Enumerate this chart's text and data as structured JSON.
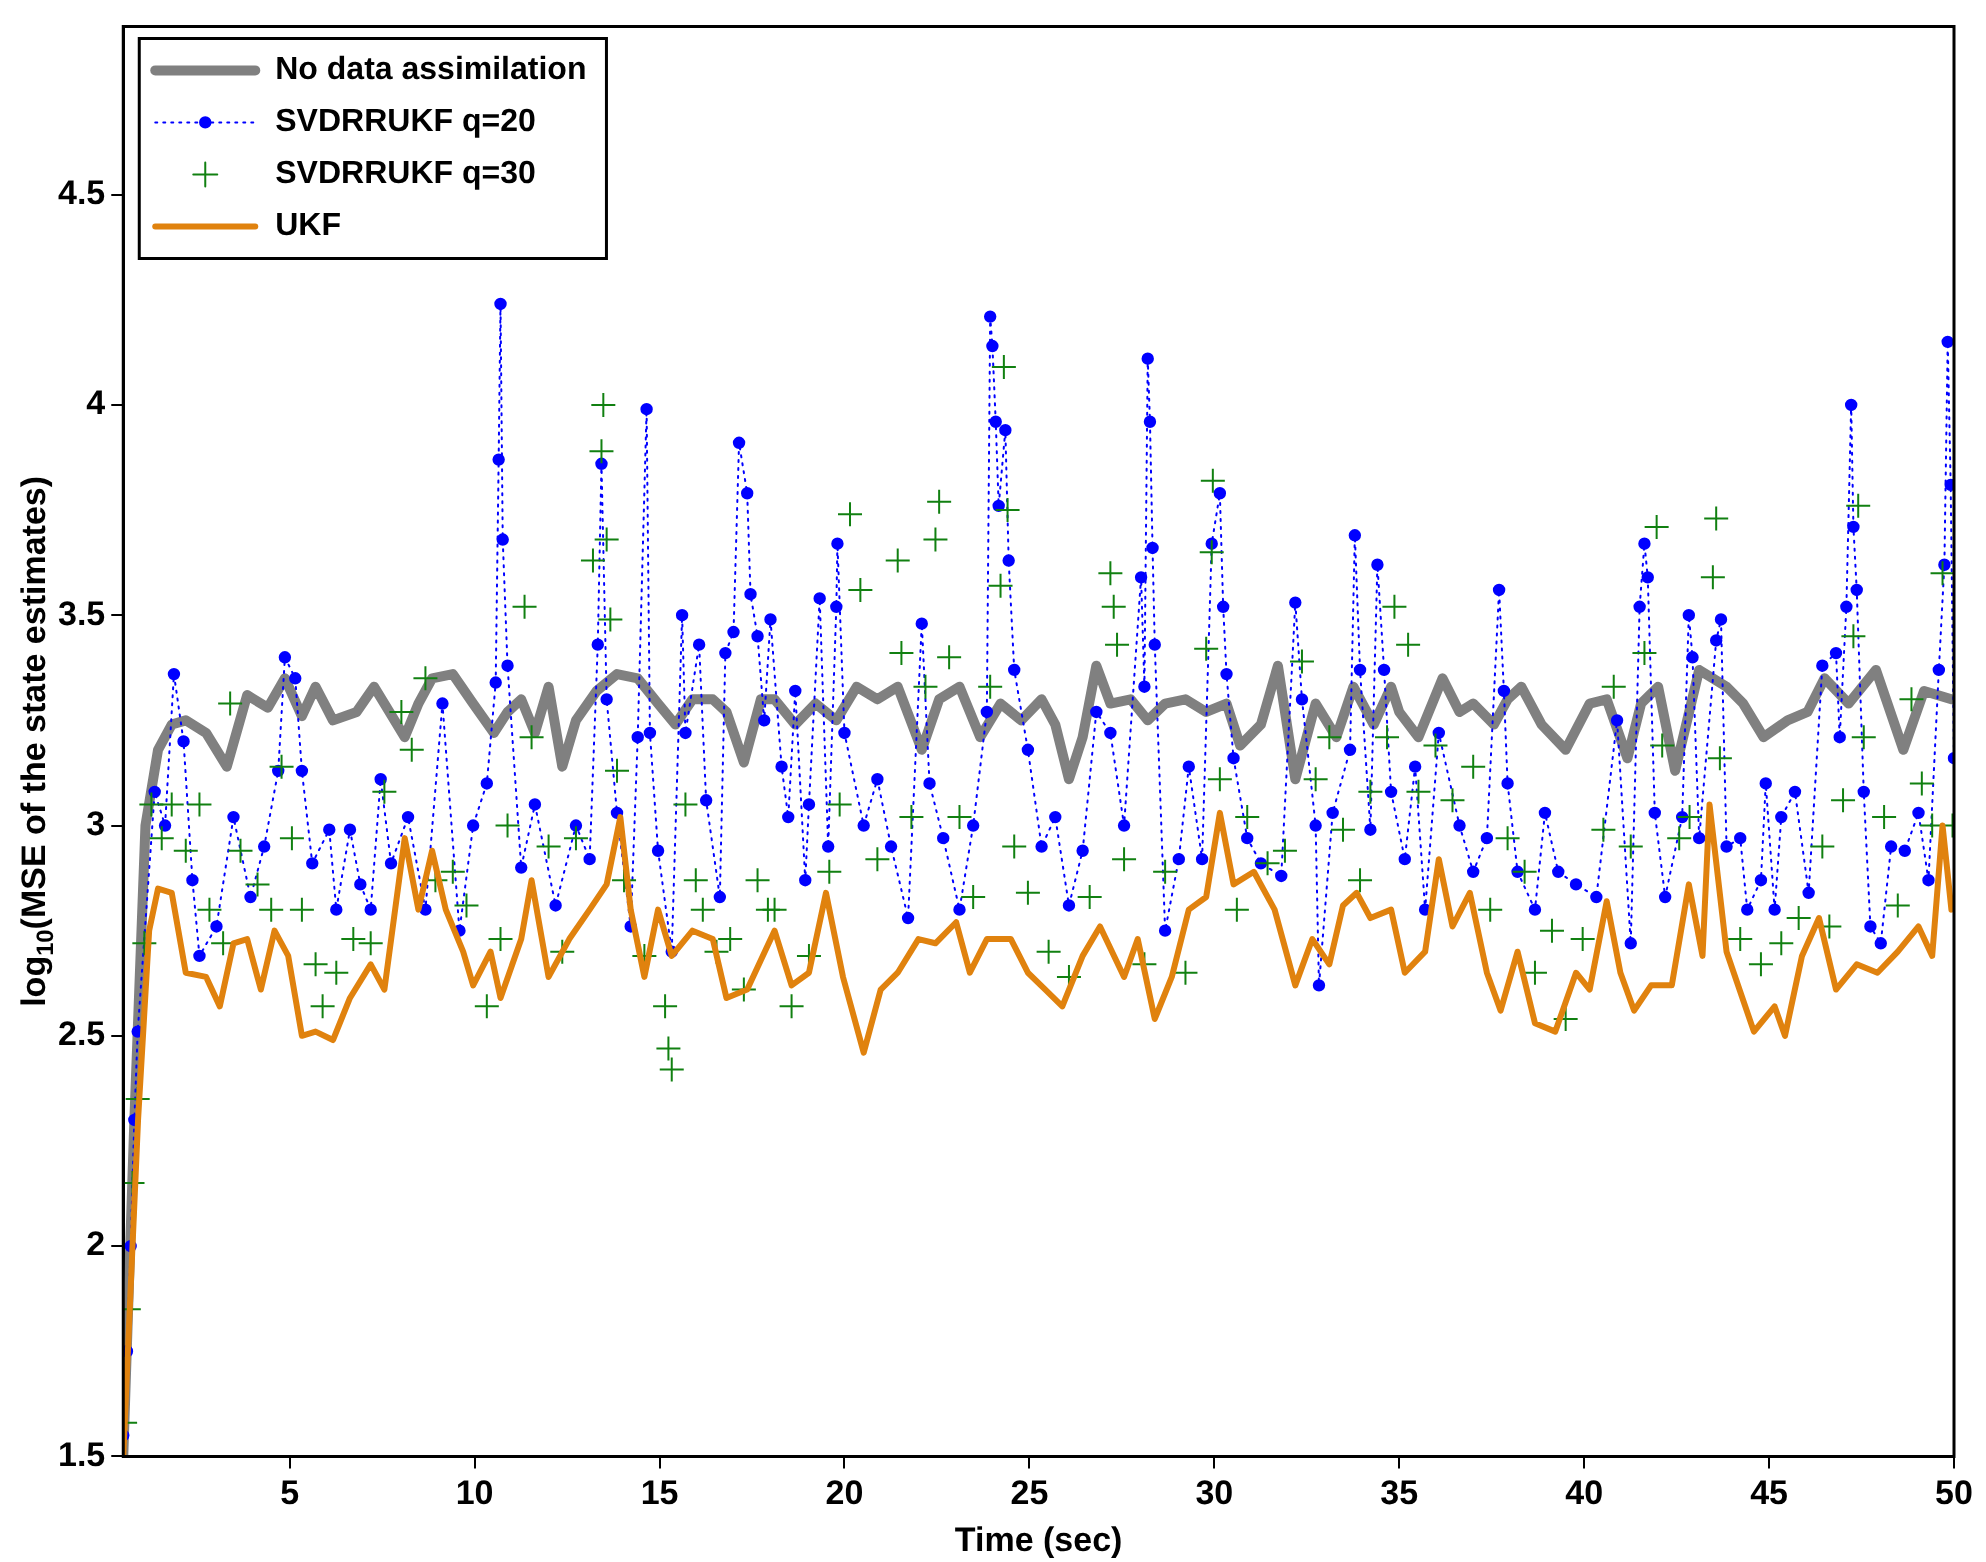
{
  "chart_data": {
    "type": "line",
    "xlabel": "Time (sec)",
    "ylabel": "log$_{10}$(MSE of the state estimates)",
    "xlim": [
      0.5,
      50
    ],
    "xticks": [
      5,
      10,
      15,
      20,
      25,
      30,
      35,
      40,
      45,
      50
    ],
    "ylim": [
      1.5,
      4.9
    ],
    "yticks": [
      1.5,
      2,
      2.5,
      3,
      3.5,
      4,
      4.5
    ],
    "legend": "top left",
    "series": [
      {
        "name": "No data assimilation",
        "color": "#808080",
        "marker": "none",
        "line_style": "solid",
        "x": [
          0.5,
          0.8,
          1.1,
          1.44,
          1.81,
          2.19,
          2.74,
          3.3,
          3.85,
          4.41,
          4.87,
          5.33,
          5.7,
          6.17,
          6.81,
          7.28,
          7.56,
          8.11,
          8.48,
          8.85,
          9.41,
          9.96,
          10.52,
          10.89,
          11.26,
          11.63,
          12.0,
          12.37,
          12.74,
          13.3,
          13.85,
          14.41,
          14.96,
          15.43,
          15.89,
          16.44,
          16.81,
          17.28,
          17.74,
          18.11,
          18.67,
          19.22,
          19.78,
          20.33,
          20.89,
          21.44,
          22.09,
          22.56,
          23.11,
          23.67,
          24.22,
          24.78,
          25.33,
          25.7,
          26.07,
          26.44,
          26.81,
          27.19,
          27.74,
          28.2,
          28.67,
          29.22,
          29.78,
          30.33,
          30.7,
          31.26,
          31.72,
          32.19,
          32.74,
          33.3,
          33.76,
          34.31,
          34.78,
          35.0,
          35.52,
          36.17,
          36.63,
          37.0,
          37.56,
          37.93,
          38.3,
          38.85,
          39.5,
          40.15,
          40.61,
          41.17,
          41.54,
          42.0,
          42.46,
          43.11,
          43.85,
          44.3,
          44.85,
          45.5,
          46.04,
          46.5,
          47.15,
          47.89,
          48.63,
          49.19,
          49.93
        ],
        "values": [
          1.5,
          2.3,
          3.0,
          3.18,
          3.24,
          3.25,
          3.22,
          3.14,
          3.31,
          3.28,
          3.35,
          3.26,
          3.33,
          3.25,
          3.27,
          3.33,
          3.29,
          3.21,
          3.29,
          3.35,
          3.36,
          3.29,
          3.22,
          3.27,
          3.3,
          3.22,
          3.33,
          3.14,
          3.25,
          3.32,
          3.36,
          3.35,
          3.29,
          3.24,
          3.3,
          3.3,
          3.27,
          3.15,
          3.3,
          3.3,
          3.24,
          3.29,
          3.25,
          3.33,
          3.3,
          3.33,
          3.18,
          3.3,
          3.33,
          3.21,
          3.29,
          3.25,
          3.3,
          3.24,
          3.11,
          3.21,
          3.38,
          3.29,
          3.3,
          3.25,
          3.29,
          3.3,
          3.27,
          3.29,
          3.19,
          3.24,
          3.38,
          3.11,
          3.29,
          3.21,
          3.33,
          3.24,
          3.33,
          3.27,
          3.21,
          3.35,
          3.27,
          3.29,
          3.24,
          3.3,
          3.33,
          3.24,
          3.18,
          3.29,
          3.3,
          3.16,
          3.29,
          3.33,
          3.13,
          3.37,
          3.33,
          3.29,
          3.21,
          3.25,
          3.27,
          3.35,
          3.29,
          3.37,
          3.18,
          3.32,
          3.3
        ]
      },
      {
        "name": "SVDRRUKF q=20",
        "color": "#0000ff",
        "marker": "circle",
        "line_style": "dotted",
        "x": [
          0.5,
          0.6,
          0.7,
          0.8,
          0.89,
          1.35,
          1.63,
          1.87,
          2.13,
          2.37,
          2.56,
          3.02,
          3.48,
          3.94,
          4.31,
          4.69,
          4.87,
          5.15,
          5.33,
          5.61,
          6.07,
          6.26,
          6.63,
          6.91,
          7.19,
          7.46,
          7.74,
          8.2,
          8.67,
          9.13,
          9.59,
          9.96,
          10.33,
          10.57,
          10.65,
          10.7,
          10.76,
          10.89,
          11.26,
          11.63,
          12.19,
          12.74,
          13.11,
          13.33,
          13.43,
          13.57,
          13.85,
          14.22,
          14.41,
          14.65,
          14.74,
          14.96,
          15.33,
          15.61,
          15.7,
          16.07,
          16.26,
          16.63,
          16.78,
          17.0,
          17.15,
          17.37,
          17.46,
          17.65,
          17.83,
          18.0,
          18.3,
          18.48,
          18.67,
          18.94,
          19.04,
          19.33,
          19.56,
          19.78,
          19.81,
          20.0,
          20.52,
          20.89,
          21.26,
          21.72,
          22.09,
          22.3,
          22.67,
          23.11,
          23.48,
          23.85,
          23.94,
          24.0,
          24.09,
          24.17,
          24.35,
          24.44,
          24.59,
          24.96,
          25.33,
          25.7,
          26.07,
          26.44,
          26.81,
          27.19,
          27.56,
          28.02,
          28.11,
          28.2,
          28.26,
          28.33,
          28.39,
          28.67,
          29.04,
          29.31,
          29.67,
          29.93,
          30.15,
          30.24,
          30.33,
          30.52,
          30.89,
          31.26,
          31.81,
          32.19,
          32.37,
          32.74,
          32.83,
          33.2,
          33.67,
          33.8,
          33.94,
          34.22,
          34.41,
          34.59,
          34.78,
          35.15,
          35.43,
          35.7,
          36.07,
          36.63,
          37.0,
          37.37,
          37.7,
          37.83,
          37.93,
          38.2,
          38.67,
          38.94,
          39.3,
          39.78,
          40.33,
          40.89,
          41.26,
          41.5,
          41.63,
          41.72,
          41.91,
          42.19,
          42.65,
          42.83,
          42.93,
          43.11,
          43.57,
          43.7,
          43.85,
          44.22,
          44.41,
          44.78,
          44.91,
          45.15,
          45.33,
          45.7,
          46.07,
          46.44,
          46.81,
          46.91,
          47.09,
          47.22,
          47.28,
          47.37,
          47.56,
          47.74,
          48.02,
          48.3,
          48.67,
          49.04,
          49.31,
          49.59,
          49.74,
          49.83,
          49.91,
          50.0
        ],
        "values": [
          1.55,
          1.75,
          2.0,
          2.3,
          2.51,
          3.08,
          3.0,
          3.36,
          3.2,
          2.87,
          2.69,
          2.76,
          3.02,
          2.83,
          2.95,
          3.13,
          3.4,
          3.35,
          3.13,
          2.91,
          2.99,
          2.8,
          2.99,
          2.86,
          2.8,
          3.11,
          2.91,
          3.02,
          2.8,
          3.29,
          2.75,
          3.0,
          3.1,
          3.34,
          3.87,
          4.24,
          3.68,
          3.38,
          2.9,
          3.05,
          2.81,
          3.0,
          2.92,
          3.43,
          3.86,
          3.3,
          3.03,
          2.76,
          3.21,
          3.99,
          3.22,
          2.94,
          2.7,
          3.5,
          3.22,
          3.43,
          3.06,
          2.83,
          3.41,
          3.46,
          3.91,
          3.79,
          3.55,
          3.45,
          3.25,
          3.49,
          3.14,
          3.02,
          3.32,
          2.87,
          3.05,
          3.54,
          2.95,
          3.52,
          3.67,
          3.22,
          3.0,
          3.11,
          2.95,
          2.78,
          3.48,
          3.1,
          2.97,
          2.8,
          3.0,
          3.27,
          4.21,
          4.14,
          3.96,
          3.76,
          3.94,
          3.63,
          3.37,
          3.18,
          2.95,
          3.02,
          2.81,
          2.94,
          3.27,
          3.22,
          3.0,
          3.59,
          3.33,
          4.11,
          3.96,
          3.66,
          3.43,
          2.75,
          2.92,
          3.14,
          2.92,
          3.67,
          3.79,
          3.52,
          3.36,
          3.16,
          2.97,
          2.91,
          2.88,
          3.53,
          3.3,
          3.0,
          2.62,
          3.03,
          3.18,
          3.69,
          3.37,
          2.99,
          3.62,
          3.37,
          3.08,
          2.92,
          3.14,
          2.8,
          3.22,
          3.0,
          2.89,
          2.97,
          3.56,
          3.32,
          3.1,
          2.89,
          2.8,
          3.03,
          2.89,
          2.86,
          2.83,
          3.25,
          2.72,
          3.52,
          3.67,
          3.59,
          3.03,
          2.83,
          3.02,
          3.5,
          3.4,
          2.97,
          3.44,
          3.49,
          2.95,
          2.97,
          2.8,
          2.87,
          3.1,
          2.8,
          3.02,
          3.08,
          2.84,
          3.38,
          3.41,
          3.21,
          3.52,
          4.0,
          3.71,
          3.56,
          3.08,
          2.76,
          2.72,
          2.95,
          2.94,
          3.03,
          2.87,
          3.37,
          3.62,
          4.15,
          3.81,
          3.16
        ]
      },
      {
        "name": "SVDRRUKF q=30",
        "type": "scatter",
        "color": "#118011",
        "marker": "cross",
        "x": [
          0.55,
          0.65,
          0.75,
          0.89,
          1.07,
          1.26,
          1.54,
          1.81,
          2.19,
          2.56,
          2.83,
          3.2,
          3.39,
          3.67,
          4.13,
          4.5,
          4.78,
          5.06,
          5.33,
          5.7,
          5.89,
          6.26,
          6.72,
          7.19,
          7.56,
          8.02,
          8.3,
          8.67,
          8.94,
          9.41,
          9.78,
          10.33,
          10.7,
          10.89,
          11.35,
          11.54,
          12.0,
          12.37,
          12.74,
          13.2,
          13.43,
          13.48,
          13.57,
          13.67,
          13.85,
          14.04,
          14.59,
          15.15,
          15.24,
          15.33,
          15.7,
          15.98,
          16.17,
          16.54,
          16.91,
          17.28,
          17.65,
          17.93,
          18.11,
          18.57,
          19.04,
          19.59,
          19.87,
          20.15,
          20.43,
          20.89,
          21.44,
          21.54,
          21.81,
          22.19,
          22.46,
          22.56,
          22.83,
          23.11,
          23.48,
          23.94,
          24.22,
          24.31,
          24.41,
          24.59,
          24.96,
          25.52,
          26.07,
          26.63,
          27.19,
          27.28,
          27.37,
          27.56,
          28.11,
          28.67,
          29.22,
          29.78,
          29.93,
          29.96,
          30.15,
          30.61,
          30.89,
          31.44,
          31.91,
          32.37,
          32.74,
          33.11,
          33.48,
          33.94,
          34.22,
          34.67,
          34.87,
          35.24,
          35.52,
          35.98,
          36.44,
          37.0,
          37.46,
          37.93,
          38.39,
          38.67,
          39.13,
          39.5,
          39.96,
          40.52,
          40.8,
          41.26,
          41.63,
          41.96,
          42.11,
          42.57,
          42.85,
          43.48,
          43.57,
          43.67,
          44.22,
          44.78,
          45.33,
          45.8,
          46.44,
          46.63,
          47.0,
          47.28,
          47.41,
          47.56,
          48.11,
          48.48,
          48.85,
          49.13,
          49.41,
          49.69,
          49.96
        ],
        "values": [
          1.58,
          1.85,
          2.15,
          2.35,
          2.72,
          3.05,
          2.97,
          3.05,
          2.94,
          3.05,
          2.8,
          2.72,
          3.29,
          2.94,
          2.86,
          2.8,
          3.14,
          2.97,
          2.8,
          2.67,
          2.57,
          2.65,
          2.73,
          2.72,
          3.08,
          3.27,
          3.18,
          3.35,
          2.87,
          2.89,
          2.81,
          2.57,
          2.73,
          3.0,
          3.52,
          3.21,
          2.95,
          2.7,
          2.97,
          3.63,
          3.89,
          4.0,
          3.68,
          3.49,
          3.13,
          2.87,
          2.69,
          2.57,
          2.47,
          2.42,
          3.05,
          2.87,
          2.8,
          2.7,
          2.73,
          2.61,
          2.87,
          2.8,
          2.8,
          2.57,
          2.69,
          2.89,
          3.05,
          3.74,
          3.56,
          2.92,
          3.63,
          3.41,
          3.02,
          3.33,
          3.68,
          3.77,
          3.4,
          3.02,
          2.83,
          3.33,
          3.57,
          4.09,
          3.75,
          2.95,
          2.84,
          2.7,
          2.64,
          2.83,
          3.6,
          3.52,
          3.43,
          2.92,
          2.67,
          2.89,
          2.65,
          3.42,
          3.65,
          3.82,
          3.11,
          2.8,
          3.02,
          2.91,
          2.94,
          3.39,
          3.11,
          3.21,
          2.99,
          2.87,
          3.08,
          3.21,
          3.52,
          3.43,
          3.08,
          3.19,
          3.06,
          3.14,
          2.8,
          2.97,
          2.89,
          2.65,
          2.75,
          2.54,
          2.73,
          2.99,
          3.33,
          2.95,
          3.41,
          3.71,
          3.19,
          2.97,
          3.02,
          3.59,
          3.73,
          3.16,
          2.73,
          2.67,
          2.72,
          2.78,
          2.95,
          2.76,
          3.06,
          3.45,
          3.76,
          3.21,
          3.02,
          2.81,
          3.3,
          3.1,
          3.0,
          3.6,
          3.0
        ]
      },
      {
        "name": "UKF",
        "color": "#e0820e",
        "marker": "none",
        "line_style": "solid",
        "x": [
          0.5,
          0.9,
          1.2,
          1.44,
          1.81,
          2.19,
          2.74,
          3.11,
          3.48,
          3.85,
          4.22,
          4.59,
          4.96,
          5.33,
          5.7,
          6.17,
          6.63,
          7.19,
          7.56,
          8.11,
          8.48,
          8.85,
          9.22,
          9.69,
          9.96,
          10.43,
          10.7,
          11.26,
          11.54,
          12.0,
          12.56,
          13.11,
          13.57,
          13.94,
          14.22,
          14.59,
          14.96,
          15.33,
          15.89,
          16.44,
          16.81,
          17.37,
          18.11,
          18.57,
          19.04,
          19.5,
          19.96,
          20.52,
          20.98,
          21.44,
          22.0,
          22.46,
          23.02,
          23.39,
          23.85,
          24.5,
          24.96,
          25.43,
          25.89,
          26.44,
          26.91,
          27.56,
          27.93,
          28.39,
          28.85,
          29.31,
          29.78,
          30.15,
          30.52,
          31.07,
          31.63,
          32.19,
          32.65,
          33.11,
          33.48,
          33.85,
          34.22,
          34.78,
          35.15,
          35.7,
          36.07,
          36.44,
          36.91,
          37.37,
          37.74,
          38.2,
          38.67,
          39.22,
          39.78,
          40.15,
          40.61,
          40.98,
          41.35,
          41.81,
          42.37,
          42.83,
          43.2,
          43.39,
          43.85,
          44.59,
          45.15,
          45.43,
          45.89,
          46.35,
          46.81,
          47.37,
          47.93,
          48.48,
          49.04,
          49.41,
          49.69,
          49.93
        ],
        "values": [
          1.5,
          2.3,
          2.75,
          2.85,
          2.84,
          2.65,
          2.64,
          2.57,
          2.72,
          2.73,
          2.61,
          2.75,
          2.69,
          2.5,
          2.51,
          2.49,
          2.59,
          2.67,
          2.61,
          2.97,
          2.8,
          2.94,
          2.8,
          2.7,
          2.62,
          2.7,
          2.59,
          2.73,
          2.87,
          2.64,
          2.73,
          2.8,
          2.86,
          3.02,
          2.8,
          2.64,
          2.8,
          2.69,
          2.75,
          2.73,
          2.59,
          2.61,
          2.75,
          2.62,
          2.65,
          2.84,
          2.64,
          2.46,
          2.61,
          2.65,
          2.73,
          2.72,
          2.77,
          2.65,
          2.73,
          2.73,
          2.65,
          2.61,
          2.57,
          2.69,
          2.76,
          2.64,
          2.73,
          2.54,
          2.64,
          2.8,
          2.83,
          3.03,
          2.86,
          2.89,
          2.8,
          2.62,
          2.73,
          2.67,
          2.81,
          2.84,
          2.78,
          2.8,
          2.65,
          2.7,
          2.92,
          2.76,
          2.84,
          2.65,
          2.56,
          2.7,
          2.53,
          2.51,
          2.65,
          2.61,
          2.82,
          2.65,
          2.56,
          2.62,
          2.62,
          2.86,
          2.69,
          3.05,
          2.7,
          2.51,
          2.57,
          2.5,
          2.69,
          2.78,
          2.61,
          2.67,
          2.65,
          2.7,
          2.76,
          2.69,
          3.0,
          2.8
        ]
      }
    ]
  }
}
